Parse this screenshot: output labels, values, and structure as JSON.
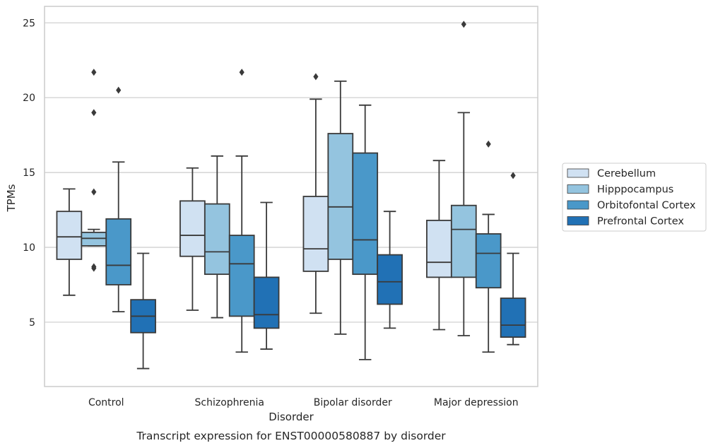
{
  "chart_data": {
    "type": "boxplot",
    "title": "",
    "caption": "Transcript expression for ENST00000580887 by disorder",
    "xlabel": "Disorder",
    "ylabel": "TPMs",
    "ylim": [
      0.7,
      26.1
    ],
    "yticks": [
      5,
      10,
      15,
      20,
      25
    ],
    "grid": "horizontal",
    "legend_position": "right",
    "categories": [
      "Control",
      "Schizophrenia",
      "Bipolar disorder",
      "Major depression"
    ],
    "series": [
      {
        "name": "Cerebellum",
        "color": "#d0e1f2",
        "boxes": [
          {
            "whislo": 6.8,
            "q1": 9.2,
            "med": 10.7,
            "q3": 12.4,
            "whishi": 13.9,
            "fliers": []
          },
          {
            "whislo": 5.8,
            "q1": 9.4,
            "med": 10.8,
            "q3": 13.1,
            "whishi": 15.3,
            "fliers": []
          },
          {
            "whislo": 5.6,
            "q1": 8.4,
            "med": 9.9,
            "q3": 13.4,
            "whishi": 19.9,
            "fliers": [
              21.4
            ]
          },
          {
            "whislo": 4.5,
            "q1": 8.0,
            "med": 9.0,
            "q3": 11.8,
            "whishi": 15.8,
            "fliers": []
          }
        ]
      },
      {
        "name": "Hipppocampus",
        "color": "#94c4df",
        "boxes": [
          {
            "whislo": 10.1,
            "q1": 10.1,
            "med": 10.6,
            "q3": 11.0,
            "whishi": 11.2,
            "fliers": [
              8.6,
              8.7,
              13.7,
              19.0,
              21.7
            ]
          },
          {
            "whislo": 5.3,
            "q1": 8.2,
            "med": 9.7,
            "q3": 12.9,
            "whishi": 16.1,
            "fliers": []
          },
          {
            "whislo": 4.2,
            "q1": 9.2,
            "med": 12.7,
            "q3": 17.6,
            "whishi": 21.1,
            "fliers": []
          },
          {
            "whislo": 4.1,
            "q1": 8.0,
            "med": 11.2,
            "q3": 12.8,
            "whishi": 19.0,
            "fliers": [
              24.9
            ]
          }
        ]
      },
      {
        "name": "Orbitofontal Cortex",
        "color": "#4a98c9",
        "boxes": [
          {
            "whislo": 5.7,
            "q1": 7.5,
            "med": 8.8,
            "q3": 11.9,
            "whishi": 15.7,
            "fliers": [
              20.5
            ]
          },
          {
            "whislo": 3.0,
            "q1": 5.4,
            "med": 8.9,
            "q3": 10.8,
            "whishi": 16.1,
            "fliers": [
              21.7
            ]
          },
          {
            "whislo": 2.5,
            "q1": 8.2,
            "med": 10.5,
            "q3": 16.3,
            "whishi": 19.5,
            "fliers": []
          },
          {
            "whislo": 3.0,
            "q1": 7.3,
            "med": 9.6,
            "q3": 10.9,
            "whishi": 12.2,
            "fliers": [
              16.9
            ]
          }
        ]
      },
      {
        "name": "Prefrontal Cortex",
        "color": "#2171b5",
        "boxes": [
          {
            "whislo": 1.9,
            "q1": 4.3,
            "med": 5.4,
            "q3": 6.5,
            "whishi": 9.6,
            "fliers": []
          },
          {
            "whislo": 3.2,
            "q1": 4.6,
            "med": 5.5,
            "q3": 8.0,
            "whishi": 13.0,
            "fliers": []
          },
          {
            "whislo": 4.6,
            "q1": 6.2,
            "med": 7.7,
            "q3": 9.5,
            "whishi": 12.4,
            "fliers": []
          },
          {
            "whislo": 3.5,
            "q1": 4.0,
            "med": 4.8,
            "q3": 6.6,
            "whishi": 9.6,
            "fliers": [
              14.8
            ]
          }
        ]
      }
    ]
  }
}
